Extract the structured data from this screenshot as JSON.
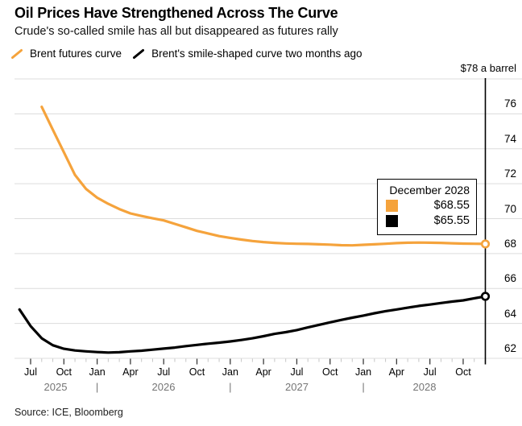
{
  "header": {
    "title": "Oil Prices Have Strengthened Across The Curve",
    "subtitle": "Crude's so-called smile has all but disappeared as futures rally"
  },
  "legend": [
    {
      "label": "Brent futures curve",
      "color": "#F5A33C",
      "icon": "orange-slash-icon"
    },
    {
      "label": "Brent's smile-shaped curve two months ago",
      "color": "#000000",
      "icon": "black-slash-icon"
    }
  ],
  "tooltip": {
    "title": "December 2028",
    "rows": [
      {
        "swatch": "#F5A33C",
        "value": "$68.55"
      },
      {
        "swatch": "#000000",
        "value": "$65.55"
      }
    ]
  },
  "source": "Source: ICE, Bloomberg",
  "colors": {
    "accent_orange": "#F5A33C",
    "series_black": "#000000",
    "gridline": "#DCDCDC",
    "axis": "#000000",
    "minor_tick": "#C6C6C6",
    "major_tick": "#3A3A3A",
    "year_text": "#757575"
  },
  "chart_data": {
    "type": "line",
    "unit_label": "$78 a barrel",
    "ylim": [
      62,
      78
    ],
    "grid_step": 2,
    "y_ticks": [
      76,
      74,
      72,
      70,
      68,
      66,
      64,
      62
    ],
    "x_tick_labels": [
      "Jul",
      "Oct",
      "Jan",
      "Apr",
      "Jul",
      "Oct",
      "Jan",
      "Apr",
      "Jul",
      "Oct",
      "Jan",
      "Apr",
      "Jul",
      "Oct"
    ],
    "year_labels": [
      "2025",
      "2026",
      "2027",
      "2028"
    ],
    "legend_position": "top-left",
    "grid": true,
    "series": [
      {
        "name": "Brent futures curve",
        "color": "#F5A33C",
        "start_month": "2025-08",
        "start_offset_months": 1,
        "end_month": "2028-12",
        "end_value": 68.55,
        "values": [
          76.4,
          75.1,
          73.8,
          72.5,
          71.7,
          71.2,
          70.85,
          70.55,
          70.3,
          70.15,
          70.02,
          69.9,
          69.7,
          69.5,
          69.3,
          69.15,
          69.0,
          68.9,
          68.8,
          68.72,
          68.66,
          68.61,
          68.58,
          68.56,
          68.55,
          68.53,
          68.51,
          68.48,
          68.47,
          68.5,
          68.53,
          68.56,
          68.6,
          68.62,
          68.63,
          68.62,
          68.61,
          68.59,
          68.57,
          68.56,
          68.55
        ]
      },
      {
        "name": "Brent's smile-shaped curve two months ago",
        "color": "#000000",
        "start_month": "2025-06",
        "start_offset_months": -1,
        "end_month": "2028-12",
        "end_value": 65.55,
        "values": [
          64.8,
          63.85,
          63.15,
          62.75,
          62.55,
          62.45,
          62.4,
          62.36,
          62.33,
          62.35,
          62.4,
          62.44,
          62.5,
          62.56,
          62.62,
          62.7,
          62.77,
          62.84,
          62.9,
          62.97,
          63.05,
          63.15,
          63.27,
          63.4,
          63.5,
          63.62,
          63.77,
          63.92,
          64.06,
          64.2,
          64.33,
          64.45,
          64.58,
          64.7,
          64.8,
          64.9,
          65.0,
          65.08,
          65.17,
          65.25,
          65.32,
          65.44,
          65.55
        ]
      }
    ]
  }
}
